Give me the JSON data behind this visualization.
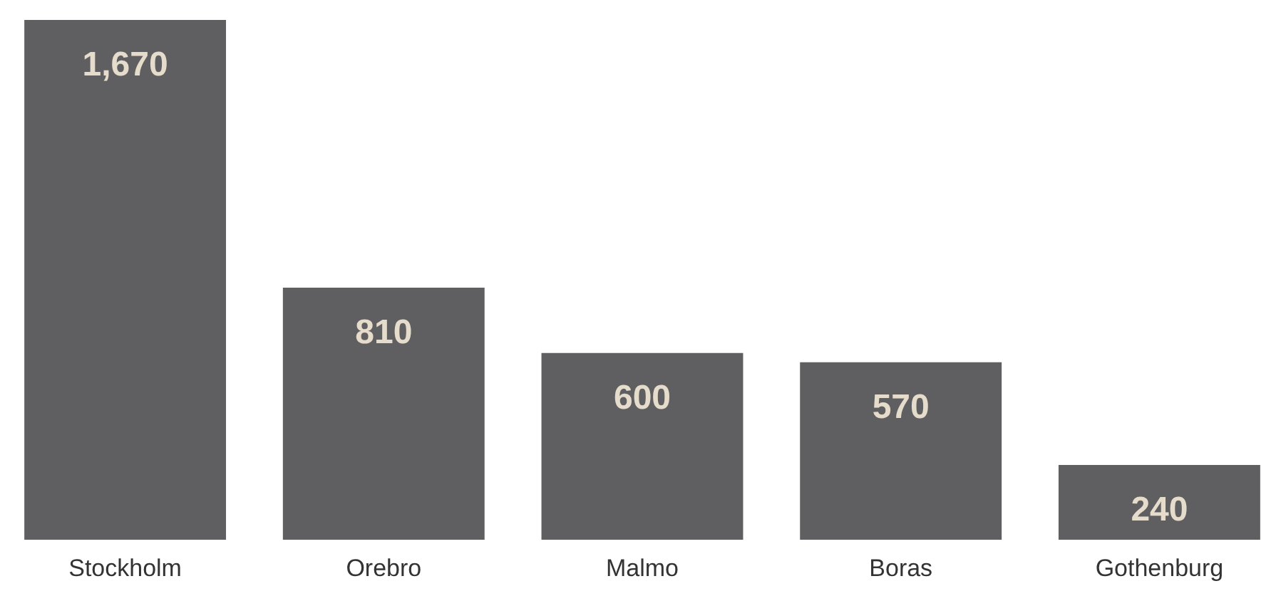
{
  "chart_data": {
    "type": "bar",
    "categories": [
      "Stockholm",
      "Orebro",
      "Malmo",
      "Boras",
      "Gothenburg"
    ],
    "values": [
      1670,
      810,
      600,
      570,
      240
    ],
    "color": "#5f5f61",
    "ylim": [
      0,
      1670
    ],
    "tick_labels": "x",
    "value_labels": [
      "1,670",
      "810",
      "600",
      "570",
      "240"
    ]
  }
}
